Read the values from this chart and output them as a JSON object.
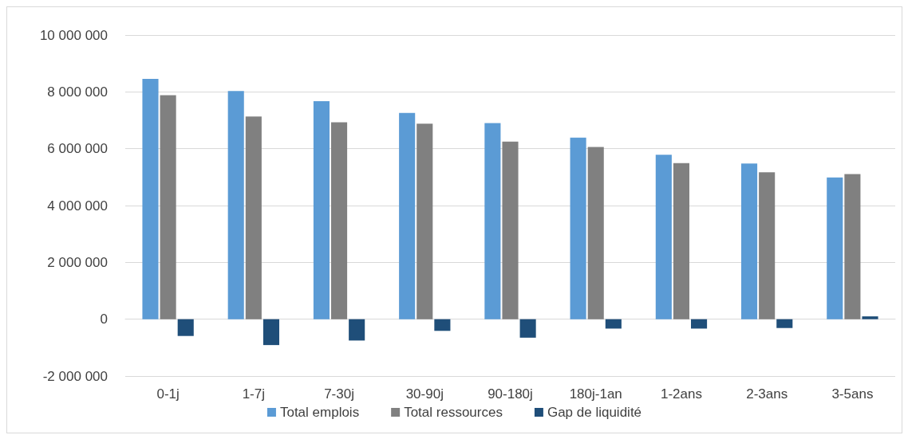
{
  "chart_data": {
    "type": "bar",
    "categories": [
      "0-1j",
      "1-7j",
      "7-30j",
      "30-90j",
      "90-180j",
      "180j-1an",
      "1-2ans",
      "2-3ans",
      "3-5ans"
    ],
    "series": [
      {
        "name": "Total emplois",
        "color": "#5b9bd5",
        "values": [
          8460000,
          8030000,
          7670000,
          7260000,
          6900000,
          6390000,
          5790000,
          5480000,
          4990000
        ]
      },
      {
        "name": "Total ressources",
        "color": "#808080",
        "values": [
          7880000,
          7130000,
          6930000,
          6880000,
          6250000,
          6060000,
          5490000,
          5170000,
          5110000
        ]
      },
      {
        "name": "Gap de liquidité",
        "color": "#1f4e79",
        "values": [
          -590000,
          -910000,
          -750000,
          -410000,
          -650000,
          -330000,
          -330000,
          -310000,
          100000
        ]
      }
    ],
    "ylim": [
      -2000000,
      10000000
    ],
    "yticks": [
      {
        "value": -2000000,
        "label": "-2 000 000"
      },
      {
        "value": 0,
        "label": "0"
      },
      {
        "value": 2000000,
        "label": "2 000 000"
      },
      {
        "value": 4000000,
        "label": "4 000 000"
      },
      {
        "value": 6000000,
        "label": "6 000 000"
      },
      {
        "value": 8000000,
        "label": "8 000 000"
      },
      {
        "value": 10000000,
        "label": "10 000 000"
      }
    ],
    "grid": "y",
    "legend": "bottom"
  }
}
